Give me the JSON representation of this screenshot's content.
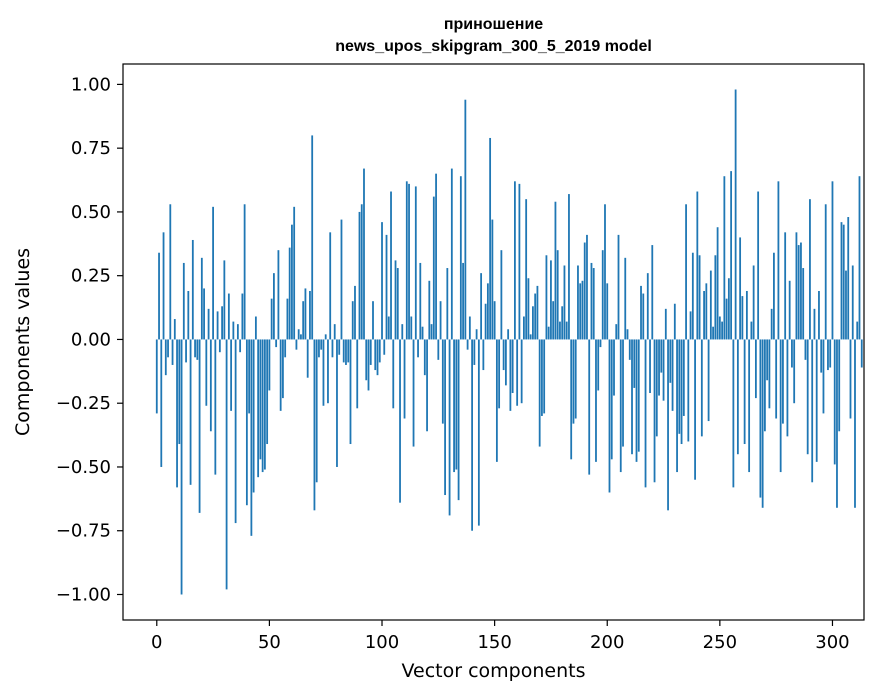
{
  "chart_data": {
    "type": "bar",
    "title_line1": "приношение",
    "title_line2": "news_upos_skipgram_300_5_2019 model",
    "xlabel": "Vector components",
    "ylabel": "Components values",
    "xlim": [
      -15,
      314
    ],
    "ylim": [
      -1.1,
      1.08
    ],
    "xticks": [
      0,
      50,
      100,
      150,
      200,
      250,
      300
    ],
    "xtick_labels": [
      "0",
      "50",
      "100",
      "150",
      "200",
      "250",
      "300"
    ],
    "yticks": [
      1.0,
      0.75,
      0.5,
      0.25,
      0.0,
      -0.25,
      -0.5,
      -0.75,
      -1.0
    ],
    "ytick_labels": [
      "1.00",
      "0.75",
      "0.50",
      "0.25",
      "0.00",
      "−0.25",
      "−0.50",
      "−0.75",
      "−1.00"
    ],
    "bar_color": "#1f77b4",
    "grid": false,
    "values": [
      -0.29,
      0.34,
      -0.5,
      0.42,
      -0.14,
      -0.07,
      0.53,
      -0.1,
      0.08,
      -0.58,
      -0.41,
      -1.0,
      0.3,
      -0.09,
      0.19,
      -0.57,
      0.39,
      -0.07,
      -0.08,
      -0.68,
      0.32,
      0.2,
      -0.26,
      0.12,
      -0.36,
      0.52,
      -0.53,
      0.11,
      -0.05,
      0.13,
      0.31,
      -0.98,
      0.18,
      -0.28,
      0.07,
      -0.72,
      0.06,
      -0.05,
      0.18,
      0.53,
      -0.65,
      -0.29,
      -0.77,
      -0.6,
      0.09,
      -0.54,
      -0.47,
      -0.52,
      -0.51,
      -0.41,
      -0.2,
      0.16,
      0.26,
      -0.03,
      0.35,
      -0.28,
      -0.23,
      -0.07,
      0.16,
      0.36,
      0.45,
      0.52,
      -0.04,
      0.04,
      0.02,
      0.15,
      0.2,
      -0.15,
      0.19,
      0.8,
      -0.67,
      -0.56,
      -0.07,
      -0.04,
      -0.26,
      0.02,
      -0.25,
      0.42,
      -0.07,
      0.06,
      -0.5,
      -0.06,
      0.47,
      -0.09,
      -0.1,
      -0.09,
      -0.41,
      0.15,
      0.21,
      -0.27,
      0.5,
      0.53,
      0.67,
      -0.16,
      -0.2,
      -0.1,
      0.15,
      -0.12,
      -0.14,
      -0.09,
      0.46,
      -0.06,
      0.41,
      0.09,
      0.58,
      -0.27,
      0.31,
      0.28,
      -0.64,
      0.06,
      -0.31,
      0.62,
      0.61,
      0.09,
      -0.42,
      0.6,
      -0.07,
      0.3,
      0.05,
      -0.14,
      -0.36,
      0.23,
      0.06,
      0.56,
      0.65,
      -0.08,
      0.15,
      -0.33,
      -0.61,
      0.28,
      -0.69,
      0.67,
      -0.52,
      -0.51,
      -0.63,
      0.64,
      0.3,
      0.94,
      -0.04,
      0.09,
      -0.75,
      -0.1,
      0.04,
      -0.73,
      0.26,
      -0.12,
      0.14,
      0.22,
      0.79,
      0.47,
      0.15,
      -0.48,
      -0.27,
      0.35,
      -0.12,
      -0.18,
      0.04,
      -0.28,
      -0.21,
      0.62,
      -0.26,
      0.61,
      -0.25,
      0.09,
      0.55,
      0.24,
      0.02,
      0.13,
      0.18,
      0.21,
      -0.42,
      -0.3,
      -0.29,
      0.33,
      0.05,
      0.31,
      0.15,
      0.54,
      0.35,
      0.07,
      0.13,
      0.29,
      0.07,
      0.57,
      -0.47,
      -0.33,
      -0.31,
      0.29,
      0.22,
      0.23,
      0.38,
      0.41,
      -0.53,
      0.3,
      0.28,
      -0.48,
      -0.2,
      -0.03,
      0.35,
      0.53,
      0.22,
      -0.6,
      -0.47,
      -0.22,
      0.06,
      0.41,
      -0.52,
      -0.42,
      0.32,
      0.04,
      -0.08,
      -0.45,
      -0.19,
      -0.48,
      -0.44,
      0.21,
      0.18,
      -0.58,
      0.26,
      -0.21,
      0.37,
      -0.56,
      -0.38,
      -0.22,
      -0.13,
      -0.24,
      0.12,
      -0.67,
      -0.17,
      -0.28,
      0.14,
      -0.52,
      -0.37,
      -0.41,
      -0.3,
      0.53,
      -0.4,
      0.11,
      0.34,
      -0.55,
      0.58,
      0.33,
      -0.38,
      0.19,
      0.22,
      -0.32,
      0.27,
      0.05,
      0.33,
      0.44,
      0.09,
      0.07,
      0.64,
      0.16,
      0.24,
      0.66,
      -0.58,
      0.98,
      -0.45,
      0.4,
      0.17,
      -0.41,
      0.19,
      -0.52,
      0.07,
      0.29,
      -0.23,
      0.58,
      -0.62,
      -0.66,
      -0.36,
      -0.16,
      -0.27,
      0.12,
      0.34,
      -0.31,
      0.62,
      -0.52,
      -0.33,
      0.42,
      -0.38,
      0.23,
      -0.11,
      -0.25,
      0.42,
      0.37,
      0.38,
      0.28,
      -0.08,
      -0.45,
      0.55,
      -0.56,
      0.12,
      -0.48,
      0.19,
      -0.13,
      -0.29,
      0.53,
      -0.12,
      -0.11,
      0.62,
      -0.49,
      -0.66,
      -0.36,
      0.46,
      0.45,
      0.27,
      0.48,
      -0.31,
      0.29,
      -0.66,
      0.07,
      0.64,
      -0.11
    ]
  }
}
